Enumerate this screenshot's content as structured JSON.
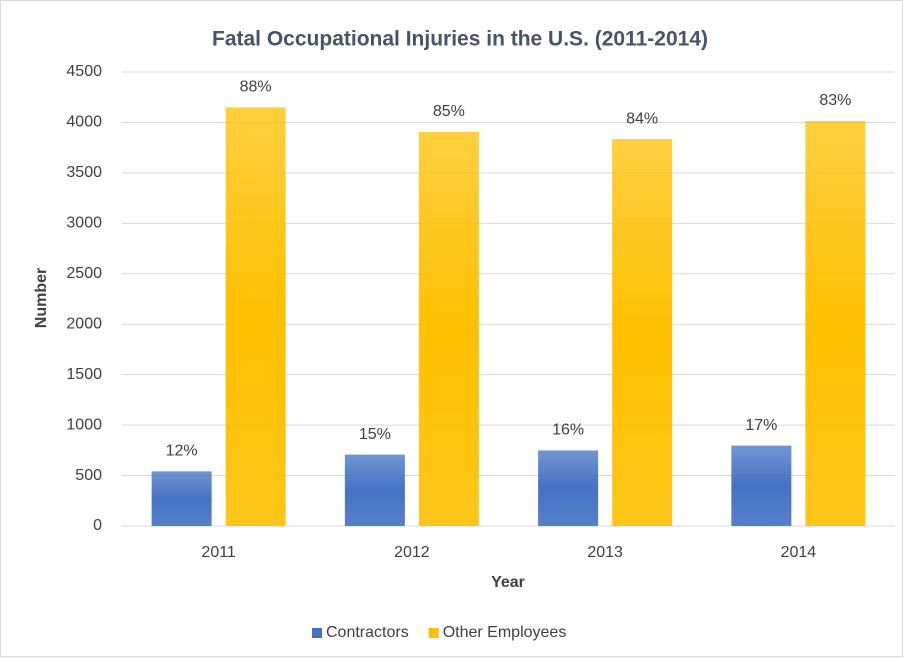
{
  "chart_data": {
    "type": "bar",
    "title": "Fatal Occupational Injuries in the U.S. (2011-2014)",
    "x_label": "Year",
    "y_label": "Number",
    "categories": [
      "2011",
      "2012",
      "2013",
      "2014"
    ],
    "series": [
      {
        "name": "Contractors",
        "color": "#4472c4",
        "values": [
          542,
          708,
          749,
          797
        ],
        "share_labels": [
          "12%",
          "15%",
          "16%",
          "17%"
        ]
      },
      {
        "name": "Other Employees",
        "color": "#ffc000",
        "values": [
          4150,
          3905,
          3835,
          4015
        ],
        "share_labels": [
          "88%",
          "85%",
          "84%",
          "83%"
        ]
      }
    ],
    "ylim": [
      0,
      4500
    ],
    "yticks": [
      0,
      500,
      1000,
      1500,
      2000,
      2500,
      3000,
      3500,
      4000,
      4500
    ],
    "grid": true,
    "legend": "bottom"
  }
}
